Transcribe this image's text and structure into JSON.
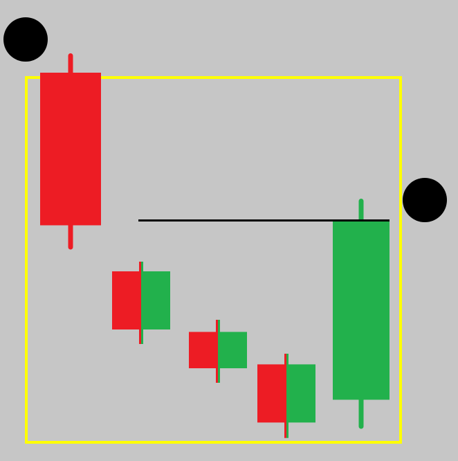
{
  "colors": {
    "background": "#c6c6c6",
    "frame": "#ffff00",
    "bearish": "#ed1c24",
    "bullish": "#22b14c",
    "level_line": "#000000",
    "marker": "#000000"
  },
  "diagram": {
    "type": "candlestick-pattern-illustration",
    "candles": [
      {
        "direction": "bearish",
        "style": "full",
        "open": 6.5,
        "close": 3.35,
        "high": 6.85,
        "low": 2.9
      },
      {
        "direction": "bearish-bullish-split",
        "style": "split",
        "open": 2.4,
        "close": 1.2,
        "high": 2.6,
        "low": 0.9
      },
      {
        "direction": "bearish-bullish-split",
        "style": "split",
        "open": 1.15,
        "close": 0.4,
        "high": 1.4,
        "low": 0.1
      },
      {
        "direction": "bearish-bullish-split",
        "style": "split",
        "open": 0.48,
        "close": -0.72,
        "high": 0.7,
        "low": -1.04
      },
      {
        "direction": "bullish",
        "style": "full",
        "open": -0.25,
        "close": 3.45,
        "high": 3.85,
        "low": -0.8
      }
    ],
    "level_line": {
      "value": 3.45,
      "from_candle": 1,
      "to_candle": 4
    },
    "markers": [
      {
        "name": "top-left-dot"
      },
      {
        "name": "right-edge-dot"
      }
    ]
  }
}
